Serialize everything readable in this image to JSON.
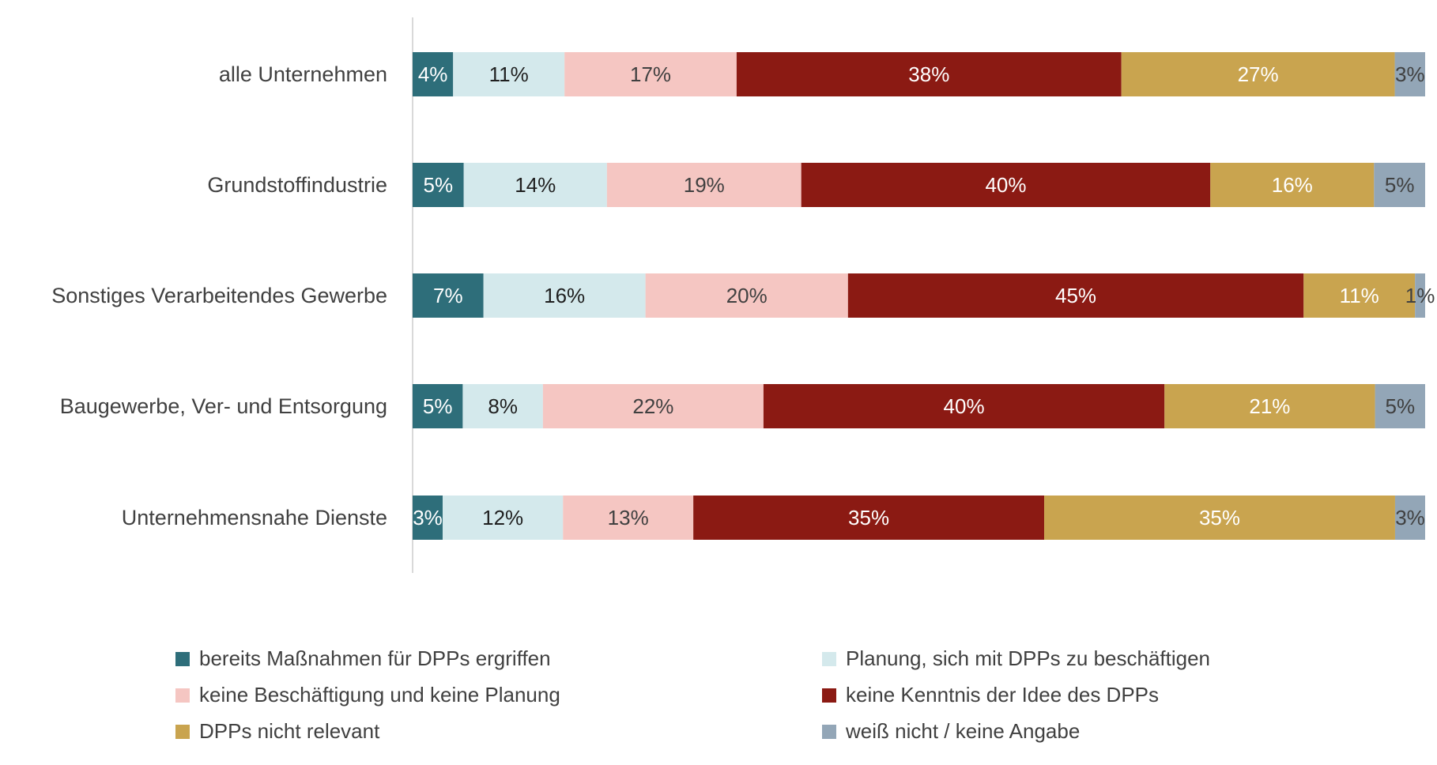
{
  "chart_data": {
    "type": "bar",
    "orientation": "horizontal",
    "stacked": true,
    "percent_scale": true,
    "grid": false,
    "legend_position": "bottom",
    "categories": [
      "alle Unternehmen",
      "Grundstoffindustrie",
      "Sonstiges Verarbeitendes Gewerbe",
      "Baugewerbe, Ver- und Entsorgung",
      "Unternehmensnahe Dienste"
    ],
    "series": [
      {
        "name": "bereits Maßnahmen für DPPs ergriffen",
        "color": "#2E6E7A",
        "label_color": "#FFFFFF",
        "values": [
          4,
          5,
          7,
          5,
          3
        ],
        "labels": [
          "4%",
          "5%",
          "7%",
          "5%",
          "3%"
        ]
      },
      {
        "name": "Planung, sich mit DPPs zu beschäftigen",
        "color": "#D4E9EC",
        "label_color": "#1F1F1F",
        "values": [
          11,
          14,
          16,
          8,
          12
        ],
        "labels": [
          "11%",
          "14%",
          "16%",
          "8%",
          "12%"
        ]
      },
      {
        "name": "keine Beschäftigung und keine Planung",
        "color": "#F5C6C2",
        "label_color": "#404040",
        "values": [
          17,
          19,
          20,
          22,
          13
        ],
        "labels": [
          "17%",
          "19%",
          "20%",
          "22%",
          "13%"
        ]
      },
      {
        "name": "keine Kenntnis der Idee des DPPs",
        "color": "#8B1A13",
        "label_color": "#FFFFFF",
        "values": [
          38,
          40,
          45,
          40,
          35
        ],
        "labels": [
          "38%",
          "40%",
          "45%",
          "40%",
          "35%"
        ]
      },
      {
        "name": "DPPs nicht relevant",
        "color": "#C9A44F",
        "label_color": "#FFFFFF",
        "values": [
          27,
          16,
          11,
          21,
          35
        ],
        "labels": [
          "27%",
          "16%",
          "11%",
          "21%",
          "35%"
        ]
      },
      {
        "name": "weiß nicht / keine Angabe",
        "color": "#93A6B7",
        "label_color": "#404040",
        "values": [
          3,
          5,
          1,
          5,
          3
        ],
        "labels": [
          "3%",
          "5%",
          "1%",
          "5%",
          "3%"
        ]
      }
    ]
  }
}
